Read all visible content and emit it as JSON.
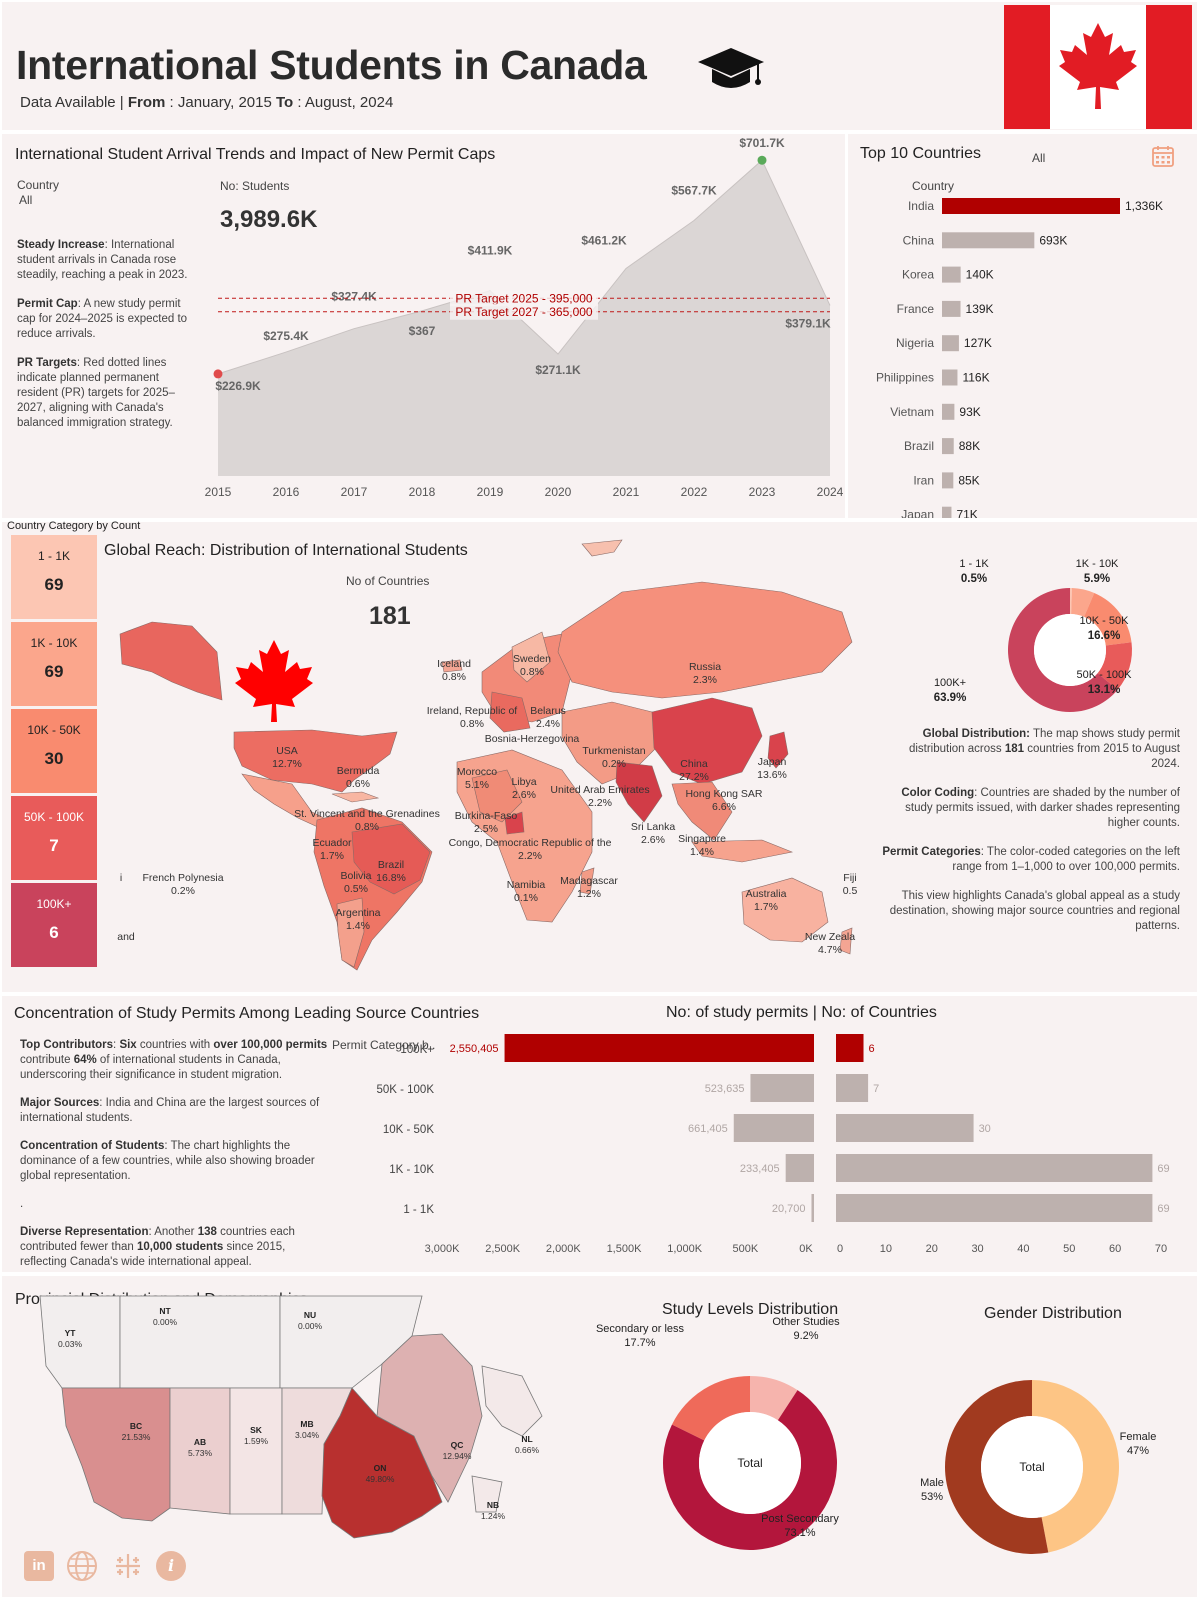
{
  "header": {
    "title": "International Students in Canada",
    "range_prefix": "Data Available | ",
    "from_label": "From",
    "from_value": " : January, 2015 ",
    "to_label": "To",
    "to_value": " : August, 2024"
  },
  "trend": {
    "title": "International Student Arrival Trends and Impact of New Permit Caps",
    "country_label": "Country",
    "country_value": "All",
    "students_label": "No: Students",
    "students_total": "3,989.6K",
    "notes": [
      {
        "head": "Steady Increase",
        "text": ": International student arrivals in Canada rose steadily, reaching a peak in 2023."
      },
      {
        "head": "Permit Cap",
        "text": ": A new study permit cap for 2024–2025 is expected to reduce arrivals."
      },
      {
        "head": "PR Targets",
        "text": ": Red dotted lines indicate planned permanent resident (PR) targets for 2025–2027, aligning with Canada's balanced immigration strategy."
      }
    ],
    "pr_lines": [
      {
        "label": "PR Target 2025 - 395,000",
        "value": 395.0
      },
      {
        "label": "PR Target 2027 - 365,000",
        "value": 365.0
      }
    ]
  },
  "top10": {
    "title": "Top 10 Countries",
    "filter_value": "All",
    "axis_label": "Country",
    "countries": [
      "India",
      "China",
      "Korea",
      "France",
      "Nigeria",
      "Philippines",
      "Vietnam",
      "Brazil",
      "Iran",
      "Japan"
    ],
    "values": [
      1336,
      693,
      140,
      139,
      127,
      116,
      93,
      88,
      85,
      71
    ],
    "labels": [
      "1,336K",
      "693K",
      "140K",
      "139K",
      "127K",
      "116K",
      "93K",
      "88K",
      "85K",
      "71K"
    ]
  },
  "category": {
    "title": "Country Category by Count",
    "boxes": [
      {
        "label": "1 - 1K",
        "count": "69",
        "color": "#fcc6b3"
      },
      {
        "label": "1K - 10K",
        "count": "69",
        "color": "#fba68c"
      },
      {
        "label": "10K - 50K",
        "count": "30",
        "color": "#f98b6f"
      },
      {
        "label": "50K - 100K",
        "count": "7",
        "color": "#e85b5a"
      },
      {
        "label": "100K+",
        "count": "6",
        "color": "#c9435c"
      }
    ]
  },
  "map": {
    "title": "Global Reach: Distribution of International Students",
    "countries_label": "No of Countries",
    "countries_value": "181",
    "labels": [
      {
        "name": "Iceland",
        "pct": "0.8%"
      },
      {
        "name": "Sweden",
        "pct": "0.8%"
      },
      {
        "name": "Russia",
        "pct": "2.3%"
      },
      {
        "name": "Ireland, Republic of",
        "pct": "0.8%"
      },
      {
        "name": "Belarus",
        "pct": "2.4%"
      },
      {
        "name": "Bosnia-Herzegovina",
        "pct": ""
      },
      {
        "name": "Turkmenistan",
        "pct": "0.2%"
      },
      {
        "name": "USA",
        "pct": "12.7%"
      },
      {
        "name": "Bermuda",
        "pct": "0.6%"
      },
      {
        "name": "Morocco",
        "pct": "5.1%"
      },
      {
        "name": "Libya",
        "pct": "2.6%"
      },
      {
        "name": "United Arab Emirates",
        "pct": "2.2%"
      },
      {
        "name": "China",
        "pct": "27.2%"
      },
      {
        "name": "Japan",
        "pct": "13.6%"
      },
      {
        "name": "Hong Kong SAR",
        "pct": "6.6%"
      },
      {
        "name": "St. Vincent and the Grenadines",
        "pct": "0.8%"
      },
      {
        "name": "Burkina-Faso",
        "pct": "2.5%"
      },
      {
        "name": "Sri Lanka",
        "pct": "2.6%"
      },
      {
        "name": "Singapore",
        "pct": "1.4%"
      },
      {
        "name": "Ecuador",
        "pct": "1.7%"
      },
      {
        "name": "Brazil",
        "pct": "16.8%"
      },
      {
        "name": "Congo, Democratic Republic of the",
        "pct": "2.2%"
      },
      {
        "name": "French Polynesia",
        "pct": "0.2%"
      },
      {
        "name": "Bolivia",
        "pct": "0.5%"
      },
      {
        "name": "Namibia",
        "pct": "0.1%"
      },
      {
        "name": "Madagascar",
        "pct": "1.2%"
      },
      {
        "name": "Australia",
        "pct": "1.7%"
      },
      {
        "name": "Fiji",
        "pct": "0.5"
      },
      {
        "name": "Argentina",
        "pct": "1.4%"
      },
      {
        "name": "New Zeala",
        "pct": "4.7%"
      },
      {
        "name": "and",
        "pct": ""
      },
      {
        "name": "i",
        "pct": ""
      }
    ]
  },
  "donut_global": {
    "segments": [
      {
        "label": "1 - 1K",
        "pct": "0.5%",
        "value": 0.5,
        "color": "#fcc6b3"
      },
      {
        "label": "1K - 10K",
        "pct": "5.9%",
        "value": 5.9,
        "color": "#fba68c"
      },
      {
        "label": "10K - 50K",
        "pct": "16.6%",
        "value": 16.6,
        "color": "#f98b6f"
      },
      {
        "label": "50K - 100K",
        "pct": "13.1%",
        "value": 13.1,
        "color": "#e85b5a"
      },
      {
        "label": "100K+",
        "pct": "63.9%",
        "value": 63.9,
        "color": "#c9435c"
      }
    ],
    "notes": [
      {
        "head": "Global Distribution:",
        "text": " The map shows study permit distribution across ",
        "bold2": "181",
        "tail": " countries from 2015 to August 2024."
      },
      {
        "head": "Color Coding",
        "text": ": Countries are shaded by the number of study permits issued, with darker shades representing higher counts.",
        "bold2": "",
        "tail": ""
      },
      {
        "head": "Permit Categories",
        "text": ": The color-coded categories on the left range from 1–1,000 to over 100,000 permits.",
        "bold2": "",
        "tail": ""
      },
      {
        "head": "",
        "text": "This view highlights Canada's global appeal as a study destination, showing major source countries and regional patterns.",
        "bold2": "",
        "tail": ""
      }
    ]
  },
  "concentration": {
    "title": "Concentration of Study Permits Among Leading Source Countries",
    "right_title": "No: of study permits  | No: of Countries",
    "axis_label": "Permit Category b..",
    "notes": [
      {
        "parts": [
          [
            "b",
            "Top Contributors"
          ],
          [
            "n",
            ": "
          ],
          [
            "b",
            "Six"
          ],
          [
            "n",
            " countries with "
          ],
          [
            "b",
            "over 100,000 permits"
          ],
          [
            "n",
            " contribute "
          ],
          [
            "b",
            "64%"
          ],
          [
            "n",
            " of international students in Canada, underscoring their significance in student migration."
          ]
        ]
      },
      {
        "parts": [
          [
            "b",
            "Major Sources"
          ],
          [
            "n",
            ": India and China are the largest sources of international students."
          ]
        ]
      },
      {
        "parts": [
          [
            "b",
            "Concentration of Students"
          ],
          [
            "n",
            ": The chart highlights the dominance of a few countries, while also showing broader global representation."
          ]
        ]
      },
      {
        "parts": [
          [
            "n",
            "."
          ]
        ]
      },
      {
        "parts": [
          [
            "b",
            "Diverse Representation"
          ],
          [
            "n",
            ": Another "
          ],
          [
            "b",
            "138"
          ],
          [
            "n",
            " countries each contributed fewer than "
          ],
          [
            "b",
            "10,000 students"
          ],
          [
            "n",
            " since 2015, reflecting Canada's wide international appeal."
          ]
        ]
      }
    ]
  },
  "provincial": {
    "title": "Provincial Distribution and Demographics",
    "provinces": [
      {
        "code": "YT",
        "pct": "0.03%"
      },
      {
        "code": "NT",
        "pct": "0.00%"
      },
      {
        "code": "NU",
        "pct": "0.00%"
      },
      {
        "code": "BC",
        "pct": "21.53%"
      },
      {
        "code": "AB",
        "pct": "5.73%"
      },
      {
        "code": "SK",
        "pct": "1.59%"
      },
      {
        "code": "MB",
        "pct": "3.04%"
      },
      {
        "code": "ON",
        "pct": "49.80%"
      },
      {
        "code": "QC",
        "pct": "12.94%"
      },
      {
        "code": "NL",
        "pct": "0.66%"
      },
      {
        "code": "NB",
        "pct": "1.24%"
      }
    ]
  },
  "study_levels": {
    "title": "Study Levels Distribution",
    "center": "Total",
    "segments": [
      {
        "label": "Other Studies",
        "pct": "9.2%",
        "value": 9.2,
        "color": "#f6b4ad"
      },
      {
        "label": "Post Secondary",
        "pct": "73.1%",
        "value": 73.1,
        "color": "#b3163c"
      },
      {
        "label": "Secondary or less",
        "pct": "17.7%",
        "value": 17.7,
        "color": "#ef6a5a"
      }
    ]
  },
  "gender": {
    "title": "Gender Distribution",
    "center": "Total",
    "segments": [
      {
        "label": "Female",
        "pct": "47%",
        "value": 47,
        "color": "#fdc585"
      },
      {
        "label": "Male",
        "pct": "53%",
        "value": 53,
        "color": "#a13a1f"
      }
    ]
  },
  "footer_icons": [
    "linkedin-icon",
    "globe-icon",
    "tableau-icon",
    "info-icon"
  ],
  "colors": {
    "accent": "#b00000",
    "bar_gray": "#bdb1ae",
    "panel_bg": "#f8f2f2",
    "flag_red": "#e21c24"
  },
  "chart_data": [
    {
      "type": "area",
      "title": "International Student Arrival Trends and Impact of New Permit Caps",
      "x": [
        "2015",
        "2016",
        "2017",
        "2018",
        "2019",
        "2020",
        "2021",
        "2022",
        "2023",
        "2024"
      ],
      "values": [
        226.9,
        275.4,
        327.4,
        367.0,
        411.9,
        271.1,
        461.2,
        567.7,
        701.7,
        379.1
      ],
      "labels": [
        "$226.9K",
        "$275.4K",
        "$327.4K",
        "$367",
        "$411.9K",
        "$271.1K",
        "$461.2K",
        "$567.7K",
        "$701.7K",
        "$379.1K"
      ],
      "ylim": [
        0,
        720
      ]
    },
    {
      "type": "bar",
      "title": "No: of study permits",
      "categories": [
        "100K+",
        "50K - 100K",
        "10K - 50K",
        "1K - 10K",
        "1 - 1K"
      ],
      "values": [
        2550405,
        523635,
        661405,
        233405,
        20700
      ],
      "labels": [
        "2,550,405",
        "523,635",
        "661,405",
        "233,405",
        "20,700"
      ],
      "xticks": [
        "3,000K",
        "2,500K",
        "2,000K",
        "1,500K",
        "1,000K",
        "500K",
        "0K"
      ],
      "xlim": [
        0,
        3000000
      ]
    },
    {
      "type": "bar",
      "title": "No: of Countries",
      "categories": [
        "100K+",
        "50K - 100K",
        "10K - 50K",
        "1K - 10K",
        "1 - 1K"
      ],
      "values": [
        6,
        7,
        30,
        69,
        69
      ],
      "xticks": [
        "0",
        "10",
        "20",
        "30",
        "40",
        "50",
        "60",
        "70"
      ],
      "xlim": [
        0,
        70
      ]
    }
  ]
}
